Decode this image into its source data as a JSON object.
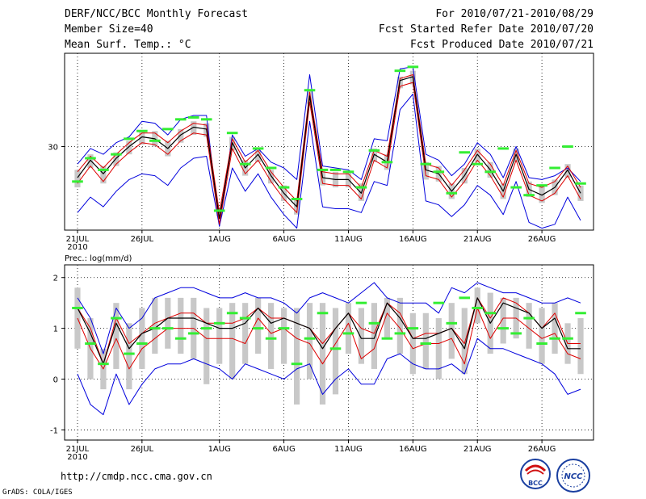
{
  "header": {
    "title": "DERF/NCC/BCC Monthly Forecast",
    "member_size": "Member Size=40",
    "variable1": "Mean Surf. Temp.: °C",
    "period": "For 2010/07/21-2010/08/29",
    "start": "Fcst Started Refer Date 2010/07/20",
    "produced": "Fcst Produced Date 2010/07/21"
  },
  "footer": {
    "url": "http://cmdp.ncc.cma.gov.cn",
    "grads": "GrADS: COLA/IGES",
    "logo1": "BCC",
    "logo2": "NCC"
  },
  "colors": {
    "envelope": "#0000dd",
    "mean": "#000000",
    "spread": "#dd0000",
    "observed": "#33ee33",
    "box": "#c8c8c8",
    "grid": "#000000"
  },
  "chart_data": [
    {
      "type": "line",
      "title": "Mean Surf. Temp.: °C",
      "x_ticks": [
        "21JUL",
        "26JUL",
        "1AUG",
        "6AUG",
        "11AUG",
        "16AUG",
        "21AUG",
        "26AUG"
      ],
      "x_tick_day_index": [
        0,
        5,
        11,
        16,
        21,
        26,
        31,
        36
      ],
      "x_sublabel": "2010",
      "y_ticks": [
        30
      ],
      "ylim": [
        25.7,
        34.8
      ],
      "days": 40,
      "series": [
        {
          "name": "upper",
          "values": [
            29.1,
            29.9,
            29.6,
            30.2,
            30.5,
            31.3,
            31.2,
            30.6,
            31.4,
            31.6,
            31.6,
            25.9,
            30.6,
            29.5,
            29.9,
            29.2,
            28.9,
            28.3,
            33.7,
            29.0,
            28.9,
            28.8,
            28.3,
            30.4,
            30.3,
            34.0,
            34.1,
            29.6,
            29.3,
            28.5,
            29.1,
            30.2,
            29.6,
            28.4,
            30.0,
            28.4,
            28.3,
            28.5,
            28.9,
            28.2
          ]
        },
        {
          "name": "hi",
          "values": [
            28.7,
            29.5,
            28.9,
            29.6,
            30.2,
            30.7,
            30.7,
            30.2,
            30.8,
            31.2,
            31.1,
            26.6,
            30.4,
            29.2,
            29.8,
            28.7,
            27.9,
            27.2,
            32.8,
            28.7,
            28.6,
            28.6,
            27.9,
            29.8,
            29.5,
            33.5,
            33.7,
            29.1,
            28.9,
            28.0,
            28.8,
            29.8,
            29.1,
            28.0,
            29.8,
            28.1,
            27.9,
            28.2,
            29.0,
            27.9
          ]
        },
        {
          "name": "mean",
          "values": [
            28.4,
            29.3,
            28.6,
            29.4,
            30.0,
            30.5,
            30.4,
            29.9,
            30.6,
            31.0,
            30.9,
            26.3,
            30.2,
            28.9,
            29.6,
            28.5,
            27.6,
            26.9,
            32.6,
            28.4,
            28.3,
            28.3,
            27.6,
            29.6,
            29.2,
            33.4,
            33.6,
            28.8,
            28.6,
            27.7,
            28.5,
            29.6,
            28.8,
            27.7,
            29.6,
            27.8,
            27.5,
            27.9,
            28.8,
            27.6
          ]
        },
        {
          "name": "lo",
          "values": [
            28.1,
            29.0,
            28.2,
            29.1,
            29.7,
            30.2,
            30.1,
            29.6,
            30.3,
            30.7,
            30.6,
            26.0,
            29.9,
            28.6,
            29.3,
            28.2,
            27.3,
            26.6,
            32.3,
            28.1,
            28.0,
            28.0,
            27.3,
            29.3,
            28.9,
            33.1,
            33.3,
            28.5,
            28.3,
            27.4,
            28.2,
            29.3,
            28.5,
            27.4,
            29.3,
            27.5,
            27.2,
            27.6,
            28.5,
            27.3
          ]
        },
        {
          "name": "lower",
          "values": [
            26.6,
            27.4,
            26.9,
            27.7,
            28.3,
            28.6,
            28.5,
            28.0,
            28.9,
            29.4,
            29.5,
            25.9,
            28.9,
            27.7,
            28.6,
            27.4,
            26.5,
            25.8,
            31.3,
            26.9,
            26.8,
            26.8,
            26.6,
            28.2,
            28.0,
            31.9,
            32.7,
            27.2,
            27.0,
            26.4,
            27.0,
            28.0,
            27.5,
            26.5,
            28.2,
            26.1,
            25.8,
            26.0,
            27.4,
            26.2
          ]
        },
        {
          "name": "observed",
          "values": [
            28.2,
            29.4,
            28.8,
            29.6,
            30.4,
            30.8,
            30.3,
            30.9,
            31.4,
            31.5,
            31.4,
            26.7,
            30.7,
            29.1,
            29.9,
            28.9,
            27.9,
            27.3,
            32.9,
            28.8,
            28.8,
            28.7,
            27.9,
            29.8,
            29.2,
            33.9,
            34.1,
            29.1,
            28.7,
            27.6,
            29.7,
            29.1,
            28.7,
            29.9,
            27.9,
            27.5,
            28.0,
            28.9,
            30.0,
            28.1
          ]
        },
        {
          "name": "box_top",
          "values": [
            28.8,
            29.6,
            29.0,
            29.7,
            30.3,
            30.8,
            30.8,
            30.3,
            30.9,
            31.3,
            31.2,
            26.8,
            30.5,
            29.3,
            29.9,
            28.8,
            28.0,
            27.3,
            32.9,
            28.8,
            28.7,
            28.7,
            28.1,
            29.9,
            29.6,
            33.6,
            33.9,
            29.2,
            29.0,
            28.1,
            28.9,
            29.9,
            29.2,
            28.1,
            29.9,
            28.2,
            28.0,
            28.3,
            29.1,
            28.0
          ]
        },
        {
          "name": "box_bottom",
          "values": [
            27.9,
            28.9,
            28.1,
            29.0,
            29.6,
            30.1,
            30.0,
            29.5,
            30.2,
            30.6,
            30.5,
            26.4,
            29.8,
            28.5,
            29.2,
            28.1,
            27.2,
            26.5,
            32.2,
            28.0,
            27.9,
            27.9,
            27.2,
            29.2,
            28.8,
            33.0,
            33.2,
            28.3,
            28.2,
            27.3,
            28.1,
            29.2,
            28.4,
            27.3,
            29.2,
            27.4,
            27.1,
            27.5,
            28.4,
            27.2
          ]
        }
      ]
    },
    {
      "type": "line",
      "title": "Prec.: log(mm/d)",
      "x_ticks": [
        "21JUL",
        "26JUL",
        "1AUG",
        "6AUG",
        "11AUG",
        "16AUG",
        "21AUG",
        "26AUG"
      ],
      "x_tick_day_index": [
        0,
        5,
        11,
        16,
        21,
        26,
        31,
        36
      ],
      "x_sublabel": "2010",
      "y_ticks": [
        2,
        1,
        0,
        -1
      ],
      "ylim": [
        -1.2,
        2.25
      ],
      "days": 40,
      "series": [
        {
          "name": "upper",
          "values": [
            1.6,
            1.2,
            0.5,
            1.4,
            1.0,
            1.2,
            1.6,
            1.7,
            1.8,
            1.8,
            1.7,
            1.6,
            1.6,
            1.7,
            1.6,
            1.6,
            1.5,
            1.3,
            1.6,
            1.7,
            1.6,
            1.5,
            1.7,
            1.9,
            1.6,
            1.5,
            1.5,
            1.5,
            1.3,
            1.8,
            1.7,
            1.9,
            1.8,
            1.7,
            1.7,
            1.6,
            1.5,
            1.5,
            1.6,
            1.5
          ]
        },
        {
          "name": "hi",
          "values": [
            1.4,
            1.0,
            0.3,
            1.2,
            0.7,
            0.9,
            1.1,
            1.2,
            1.3,
            1.3,
            1.1,
            1.1,
            1.1,
            1.2,
            1.4,
            1.2,
            1.2,
            1.1,
            1.0,
            0.7,
            1.0,
            1.3,
            1.0,
            0.9,
            1.5,
            1.3,
            0.8,
            0.9,
            0.9,
            1.0,
            0.7,
            1.6,
            1.2,
            1.6,
            1.5,
            1.3,
            1.0,
            1.3,
            0.7,
            0.7
          ]
        },
        {
          "name": "mean",
          "values": [
            1.4,
            0.9,
            0.3,
            1.1,
            0.6,
            0.9,
            1.0,
            1.2,
            1.2,
            1.2,
            1.1,
            1.0,
            1.0,
            1.1,
            1.4,
            1.1,
            1.2,
            1.1,
            1.0,
            0.6,
            1.0,
            1.3,
            0.8,
            0.8,
            1.5,
            1.2,
            0.8,
            0.8,
            0.9,
            1.0,
            0.6,
            1.6,
            1.1,
            1.5,
            1.4,
            1.3,
            1.0,
            1.2,
            0.6,
            0.6
          ]
        },
        {
          "name": "lo",
          "values": [
            1.2,
            0.6,
            0.2,
            0.8,
            0.2,
            0.6,
            0.8,
            1.0,
            1.0,
            1.0,
            0.8,
            0.8,
            0.8,
            0.7,
            1.2,
            0.9,
            1.0,
            0.8,
            0.7,
            0.3,
            0.7,
            1.1,
            0.4,
            0.6,
            1.3,
            1.0,
            0.6,
            0.7,
            0.7,
            0.8,
            0.3,
            1.4,
            0.8,
            1.2,
            1.2,
            1.0,
            0.8,
            0.9,
            0.5,
            0.4
          ]
        },
        {
          "name": "lower",
          "values": [
            0.1,
            -0.5,
            -0.7,
            0.1,
            -0.5,
            -0.1,
            0.2,
            0.3,
            0.3,
            0.4,
            0.3,
            0.2,
            0.0,
            0.3,
            0.2,
            0.1,
            0.0,
            0.2,
            0.3,
            -0.3,
            0.0,
            0.2,
            -0.1,
            -0.1,
            0.4,
            0.5,
            0.3,
            0.2,
            0.2,
            0.3,
            0.1,
            0.8,
            0.6,
            0.6,
            0.5,
            0.4,
            0.3,
            0.1,
            -0.3,
            -0.2
          ]
        },
        {
          "name": "observed",
          "values": [
            1.4,
            0.7,
            0.3,
            1.2,
            0.5,
            0.7,
            1.0,
            1.0,
            0.8,
            0.9,
            1.0,
            1.1,
            1.3,
            1.2,
            1.0,
            0.8,
            1.0,
            0.3,
            0.8,
            1.3,
            0.6,
            0.9,
            1.5,
            1.1,
            0.8,
            0.9,
            1.0,
            0.7,
            1.5,
            1.1,
            1.6,
            1.4,
            1.3,
            1.0,
            0.9,
            1.2,
            0.7,
            0.8,
            0.8,
            1.3
          ]
        },
        {
          "name": "box_top",
          "values": [
            1.8,
            1.2,
            0.6,
            1.5,
            1.1,
            1.4,
            1.6,
            1.6,
            1.6,
            1.6,
            1.4,
            1.4,
            1.5,
            1.5,
            1.6,
            1.5,
            1.4,
            1.4,
            1.5,
            1.5,
            1.4,
            1.5,
            1.4,
            1.5,
            1.6,
            1.6,
            1.3,
            1.3,
            1.2,
            1.5,
            1.4,
            1.8,
            1.7,
            1.6,
            1.6,
            1.5,
            1.4,
            1.5,
            1.1,
            1.2
          ]
        },
        {
          "name": "box_bottom",
          "values": [
            0.6,
            0.0,
            -0.2,
            0.2,
            -0.2,
            0.2,
            0.5,
            0.6,
            0.5,
            0.4,
            -0.1,
            0.3,
            0.0,
            0.3,
            0.5,
            0.2,
            0.3,
            -0.5,
            0.0,
            -0.5,
            -0.3,
            0.5,
            0.3,
            0.2,
            0.8,
            0.5,
            0.1,
            0.2,
            0.0,
            0.4,
            0.1,
            1.1,
            0.5,
            0.7,
            0.8,
            0.6,
            0.3,
            0.5,
            0.3,
            0.1
          ]
        }
      ]
    }
  ]
}
